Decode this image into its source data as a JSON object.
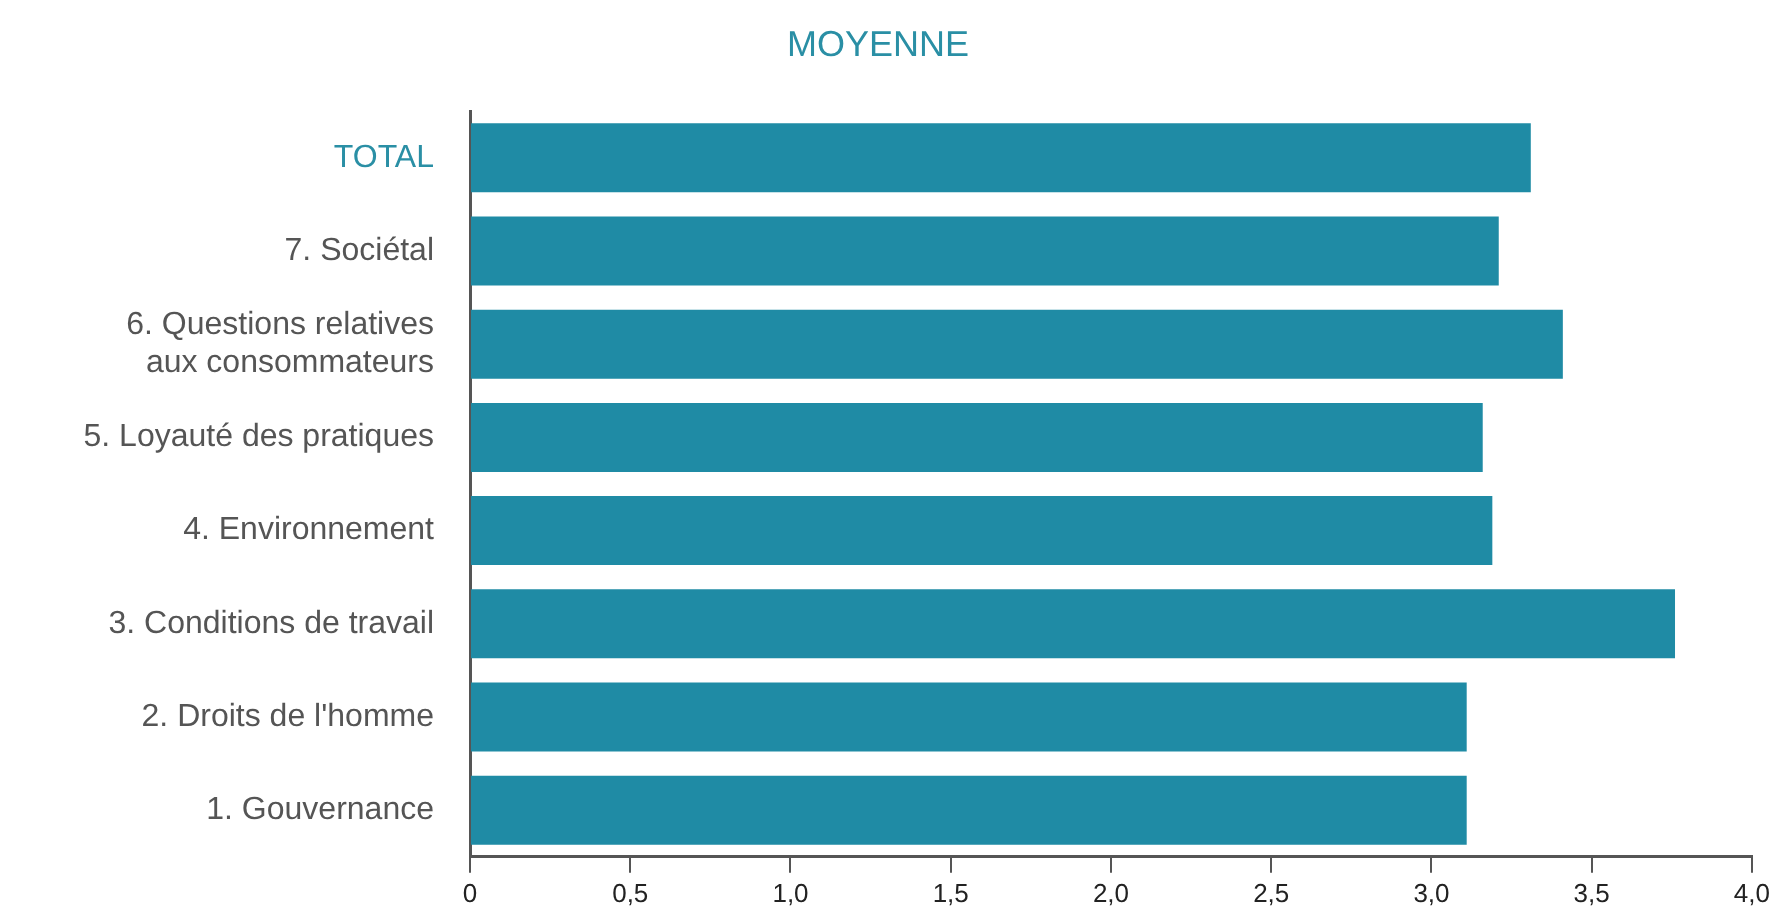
{
  "chart_data": {
    "type": "bar",
    "orientation": "horizontal",
    "title": "MOYENNE",
    "categories": [
      "TOTAL",
      "7. Sociétal",
      "6. Questions relatives aux consommateurs",
      "5. Loyauté des pratiques",
      "4. Environnement",
      "3. Conditions de travail",
      "2. Droits de l'homme",
      "1. Gouvernance"
    ],
    "values": [
      3.31,
      3.21,
      3.41,
      3.16,
      3.19,
      3.76,
      3.11,
      3.11
    ],
    "color": "#1f8ba5",
    "xlim": [
      0,
      4
    ],
    "xticks": [
      0,
      {
        "value": 0.5,
        "label": "0,5"
      },
      {
        "value": 1,
        "label": "1,0"
      },
      {
        "value": 1.5,
        "label": "1,5"
      },
      {
        "value": 2,
        "label": "2,0"
      },
      {
        "value": 2.5,
        "label": "2,5"
      },
      {
        "value": 3,
        "label": "3,0"
      },
      {
        "value": 3.5,
        "label": "3,5"
      },
      {
        "value": 4,
        "label": "4,0"
      }
    ],
    "grid": false,
    "legend": false
  }
}
